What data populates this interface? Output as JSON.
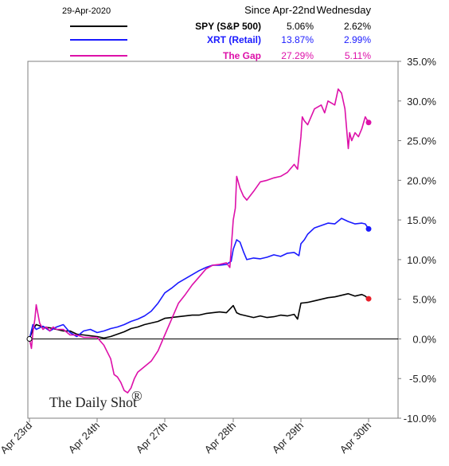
{
  "chart_data": {
    "type": "line",
    "date_label": "29-Apr-2020",
    "column_headers": [
      "Since Apr-22nd",
      "Wednesday"
    ],
    "x_categories": [
      "Apr 23rd",
      "Apr 24th",
      "Apr 27th",
      "Apr 28th",
      "Apr 29th",
      "Apr 30th"
    ],
    "ylim": [
      -10,
      35
    ],
    "y_ticks": [
      -10,
      -5,
      0,
      5,
      10,
      15,
      20,
      25,
      30,
      35
    ],
    "y_tick_labels": [
      "-10.0%",
      "-5.0%",
      "0.0%",
      "5.0%",
      "10.0%",
      "15.0%",
      "20.0%",
      "25.0%",
      "30.0%",
      "35.0%"
    ],
    "y_axis_side": "right",
    "grid": false,
    "zero_line": true,
    "watermark": "The Daily Shot",
    "series": [
      {
        "name": "SPY (S&P 500)",
        "color": "#000000",
        "since": "5.06%",
        "wednesday": "2.62%",
        "marker_color": "#e8202a",
        "points": [
          [
            0,
            0
          ],
          [
            0.05,
            1.2
          ],
          [
            0.1,
            1.8
          ],
          [
            0.2,
            1.5
          ],
          [
            0.3,
            1.4
          ],
          [
            0.4,
            1.2
          ],
          [
            0.5,
            1.0
          ],
          [
            0.6,
            1.0
          ],
          [
            0.7,
            0.6
          ],
          [
            0.8,
            0.5
          ],
          [
            0.9,
            0.4
          ],
          [
            1.0,
            0.3
          ],
          [
            1.1,
            0.1
          ],
          [
            1.2,
            0.3
          ],
          [
            1.3,
            0.6
          ],
          [
            1.4,
            0.9
          ],
          [
            1.5,
            1.3
          ],
          [
            1.6,
            1.5
          ],
          [
            1.7,
            1.8
          ],
          [
            1.8,
            2.0
          ],
          [
            1.9,
            2.2
          ],
          [
            2.0,
            2.6
          ],
          [
            2.1,
            2.7
          ],
          [
            2.2,
            2.8
          ],
          [
            2.3,
            2.9
          ],
          [
            2.4,
            3.0
          ],
          [
            2.5,
            3.0
          ],
          [
            2.6,
            3.2
          ],
          [
            2.7,
            3.3
          ],
          [
            2.8,
            3.4
          ],
          [
            2.9,
            3.3
          ],
          [
            3.0,
            4.2
          ],
          [
            3.05,
            3.3
          ],
          [
            3.1,
            3.1
          ],
          [
            3.2,
            2.9
          ],
          [
            3.3,
            2.7
          ],
          [
            3.4,
            2.9
          ],
          [
            3.5,
            2.7
          ],
          [
            3.6,
            2.8
          ],
          [
            3.7,
            3.0
          ],
          [
            3.8,
            2.9
          ],
          [
            3.9,
            3.1
          ],
          [
            3.95,
            2.5
          ],
          [
            4.0,
            4.5
          ],
          [
            4.1,
            4.6
          ],
          [
            4.2,
            4.8
          ],
          [
            4.3,
            5.0
          ],
          [
            4.4,
            5.2
          ],
          [
            4.5,
            5.3
          ],
          [
            4.6,
            5.5
          ],
          [
            4.7,
            5.7
          ],
          [
            4.8,
            5.4
          ],
          [
            4.9,
            5.6
          ],
          [
            4.95,
            5.4
          ],
          [
            5.0,
            5.06
          ]
        ]
      },
      {
        "name": "XRT (Retail)",
        "color": "#1a1aff",
        "since": "13.87%",
        "wednesday": "2.99%",
        "marker_color": "#1a1aff",
        "points": [
          [
            0,
            0
          ],
          [
            0.05,
            1.8
          ],
          [
            0.1,
            1.2
          ],
          [
            0.2,
            1.6
          ],
          [
            0.3,
            1.0
          ],
          [
            0.4,
            1.5
          ],
          [
            0.5,
            1.8
          ],
          [
            0.6,
            0.8
          ],
          [
            0.7,
            0.3
          ],
          [
            0.8,
            1.0
          ],
          [
            0.9,
            1.2
          ],
          [
            1.0,
            0.8
          ],
          [
            1.1,
            1.0
          ],
          [
            1.2,
            1.3
          ],
          [
            1.3,
            1.5
          ],
          [
            1.4,
            1.8
          ],
          [
            1.5,
            2.2
          ],
          [
            1.6,
            2.5
          ],
          [
            1.7,
            2.9
          ],
          [
            1.8,
            3.5
          ],
          [
            1.9,
            4.5
          ],
          [
            2.0,
            5.8
          ],
          [
            2.1,
            6.4
          ],
          [
            2.2,
            7.1
          ],
          [
            2.3,
            7.6
          ],
          [
            2.4,
            8.1
          ],
          [
            2.5,
            8.6
          ],
          [
            2.6,
            9.0
          ],
          [
            2.7,
            9.3
          ],
          [
            2.8,
            9.3
          ],
          [
            2.9,
            9.4
          ],
          [
            2.97,
            9.8
          ],
          [
            3.0,
            11.3
          ],
          [
            3.05,
            12.5
          ],
          [
            3.1,
            12.2
          ],
          [
            3.15,
            11.0
          ],
          [
            3.2,
            10.0
          ],
          [
            3.3,
            10.2
          ],
          [
            3.4,
            10.1
          ],
          [
            3.5,
            10.3
          ],
          [
            3.6,
            10.6
          ],
          [
            3.7,
            10.4
          ],
          [
            3.8,
            10.8
          ],
          [
            3.9,
            10.9
          ],
          [
            3.97,
            10.5
          ],
          [
            4.0,
            12.0
          ],
          [
            4.05,
            12.5
          ],
          [
            4.1,
            13.2
          ],
          [
            4.2,
            14.0
          ],
          [
            4.3,
            14.3
          ],
          [
            4.4,
            14.6
          ],
          [
            4.5,
            14.5
          ],
          [
            4.6,
            15.2
          ],
          [
            4.7,
            14.8
          ],
          [
            4.8,
            14.5
          ],
          [
            4.9,
            14.6
          ],
          [
            4.95,
            14.5
          ],
          [
            5.0,
            13.87
          ]
        ]
      },
      {
        "name": "The Gap",
        "color": "#dd10a9",
        "since": "27.29%",
        "wednesday": "5.11%",
        "marker_color": "#dd10a9",
        "points": [
          [
            0,
            0
          ],
          [
            0.03,
            -1.2
          ],
          [
            0.05,
            0.8
          ],
          [
            0.08,
            2.5
          ],
          [
            0.1,
            4.3
          ],
          [
            0.15,
            2.0
          ],
          [
            0.2,
            1.2
          ],
          [
            0.25,
            1.5
          ],
          [
            0.3,
            1.0
          ],
          [
            0.35,
            1.5
          ],
          [
            0.4,
            1.2
          ],
          [
            0.5,
            1.2
          ],
          [
            0.6,
            0.5
          ],
          [
            0.7,
            0.5
          ],
          [
            0.8,
            0.2
          ],
          [
            0.9,
            0.2
          ],
          [
            1.0,
            0.2
          ],
          [
            1.1,
            -0.8
          ],
          [
            1.2,
            -2.5
          ],
          [
            1.25,
            -4.5
          ],
          [
            1.3,
            -4.8
          ],
          [
            1.35,
            -5.5
          ],
          [
            1.4,
            -6.5
          ],
          [
            1.45,
            -6.8
          ],
          [
            1.5,
            -6.2
          ],
          [
            1.55,
            -5.0
          ],
          [
            1.6,
            -4.2
          ],
          [
            1.7,
            -3.5
          ],
          [
            1.8,
            -2.8
          ],
          [
            1.9,
            -1.5
          ],
          [
            2.0,
            0.5
          ],
          [
            2.1,
            2.5
          ],
          [
            2.2,
            4.5
          ],
          [
            2.3,
            5.6
          ],
          [
            2.4,
            6.8
          ],
          [
            2.5,
            7.8
          ],
          [
            2.6,
            8.8
          ],
          [
            2.7,
            9.3
          ],
          [
            2.8,
            9.4
          ],
          [
            2.9,
            9.6
          ],
          [
            2.95,
            9.0
          ],
          [
            3.0,
            15.0
          ],
          [
            3.03,
            16.5
          ],
          [
            3.05,
            20.5
          ],
          [
            3.1,
            19.0
          ],
          [
            3.15,
            18.0
          ],
          [
            3.2,
            17.5
          ],
          [
            3.3,
            18.6
          ],
          [
            3.4,
            19.8
          ],
          [
            3.5,
            20.0
          ],
          [
            3.6,
            20.3
          ],
          [
            3.7,
            20.5
          ],
          [
            3.8,
            21.0
          ],
          [
            3.9,
            22.0
          ],
          [
            3.95,
            21.4
          ],
          [
            4.0,
            25.5
          ],
          [
            4.02,
            28.0
          ],
          [
            4.05,
            27.5
          ],
          [
            4.1,
            27.0
          ],
          [
            4.2,
            29.0
          ],
          [
            4.3,
            29.5
          ],
          [
            4.35,
            28.5
          ],
          [
            4.4,
            30.0
          ],
          [
            4.5,
            29.5
          ],
          [
            4.55,
            31.5
          ],
          [
            4.6,
            31.0
          ],
          [
            4.65,
            29.0
          ],
          [
            4.7,
            24.0
          ],
          [
            4.72,
            26.0
          ],
          [
            4.75,
            25.0
          ],
          [
            4.8,
            26.0
          ],
          [
            4.85,
            25.5
          ],
          [
            4.9,
            26.5
          ],
          [
            4.95,
            28.0
          ],
          [
            5.0,
            27.29
          ]
        ]
      }
    ]
  }
}
